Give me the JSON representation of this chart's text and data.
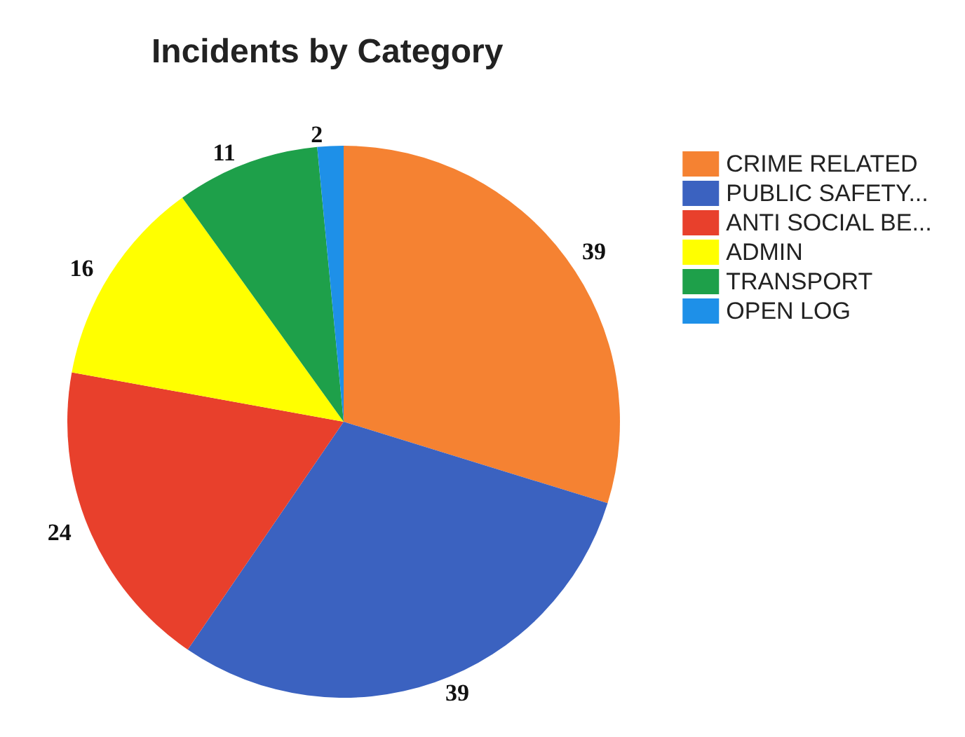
{
  "chart_data": {
    "type": "pie",
    "title": "Incidents by Category",
    "categories": [
      "CRIME RELATED",
      "PUBLIC SAFETY...",
      "ANTI SOCIAL BE...",
      "ADMIN",
      "TRANSPORT",
      "OPEN LOG"
    ],
    "values": [
      39,
      39,
      24,
      16,
      11,
      2
    ],
    "colors": [
      "#f58232",
      "#3b62c0",
      "#e8402c",
      "#ffff00",
      "#1ea04a",
      "#1e90e8"
    ],
    "data_labels": true,
    "legend": "top right"
  }
}
